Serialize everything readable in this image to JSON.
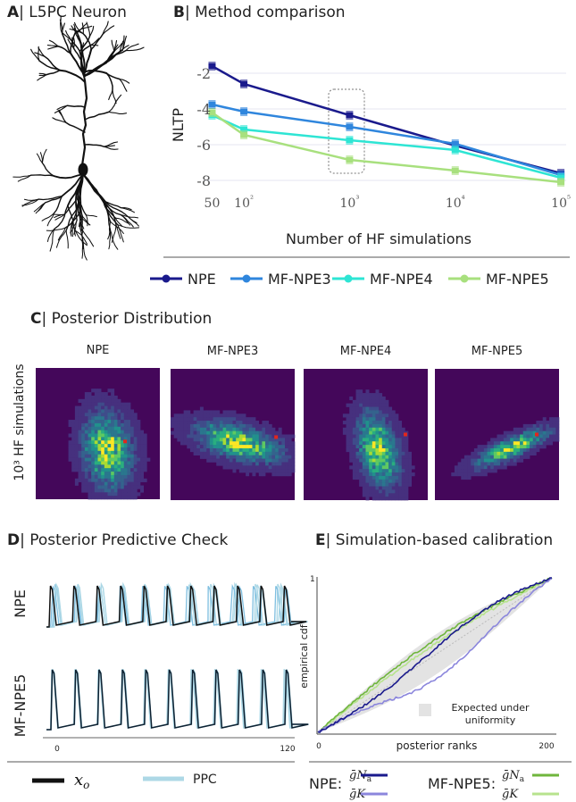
{
  "panels": {
    "a": {
      "letter": "A",
      "title": "| L5PC Neuron"
    },
    "b": {
      "letter": "B",
      "title": "| Method comparison"
    },
    "c": {
      "letter": "C",
      "title": "| Posterior Distribution"
    },
    "d": {
      "letter": "D",
      "title": "| Posterior Predictive Check"
    },
    "e": {
      "letter": "E",
      "title": "| Simulation-based calibration"
    }
  },
  "chart_data": [
    {
      "type": "line",
      "title": "Method comparison",
      "xlabel": "Number of HF simulations",
      "ylabel": "NLTP",
      "x": [
        50,
        100,
        1000,
        10000,
        100000
      ],
      "x_tick_labels": [
        "50",
        "10²",
        "10³",
        "10⁴",
        "10⁵"
      ],
      "y_ticks": [
        "-2",
        "-4",
        "-6",
        "-8"
      ],
      "ylim": [
        -8.6,
        -0.9
      ],
      "x_scale": "log",
      "grid": true,
      "legend_position": "bottom",
      "series": [
        {
          "name": "NPE",
          "color": "#1a1a8c",
          "values": [
            -1.6,
            -2.6,
            -4.35,
            -6.05,
            -7.6
          ]
        },
        {
          "name": "MF-NPE3",
          "color": "#2f86dd",
          "values": [
            -3.75,
            -4.15,
            -5.0,
            -5.95,
            -7.7
          ]
        },
        {
          "name": "MF-NPE4",
          "color": "#2ee5d4",
          "values": [
            -4.35,
            -5.15,
            -5.75,
            -6.3,
            -7.85
          ]
        },
        {
          "name": "MF-NPE5",
          "color": "#a8e07e",
          "values": [
            -4.2,
            -5.45,
            -6.85,
            -7.45,
            -8.1
          ]
        }
      ],
      "highlight_x": 1000
    },
    {
      "type": "heatmap",
      "title": "Posterior Distribution",
      "ylabel": "10³ HF simulations",
      "panels": [
        "NPE",
        "MF-NPE3",
        "MF-NPE4",
        "MF-NPE5"
      ],
      "background": "#44075a"
    },
    {
      "type": "line",
      "title": "Posterior Predictive Check",
      "rows": [
        "NPE",
        "MF-NPE5"
      ],
      "x_tick_labels": [
        "0",
        "120"
      ],
      "legend": [
        {
          "name": "xo",
          "color": "#111111"
        },
        {
          "name": "PPC",
          "color": "#add8e6"
        }
      ]
    },
    {
      "type": "line",
      "title": "Simulation-based calibration",
      "xlabel": "posterior ranks",
      "ylabel": "empirical cdf",
      "x_tick_labels": [
        "0",
        "200"
      ],
      "y_tick_labels": [
        "1"
      ],
      "band_label_1": "Expected under",
      "band_label_2": "uniformity",
      "legend_groups": [
        {
          "name": "NPE:",
          "entries": [
            {
              "label": "ḡNa",
              "color": "#1a1a8c"
            },
            {
              "label": "ḡK",
              "color": "#8b86dc"
            }
          ]
        },
        {
          "name": "MF-NPE5:",
          "entries": [
            {
              "label": "ḡNa",
              "color": "#6fb63c"
            },
            {
              "label": "ḡK",
              "color": "#b7e38d"
            }
          ]
        }
      ]
    }
  ]
}
